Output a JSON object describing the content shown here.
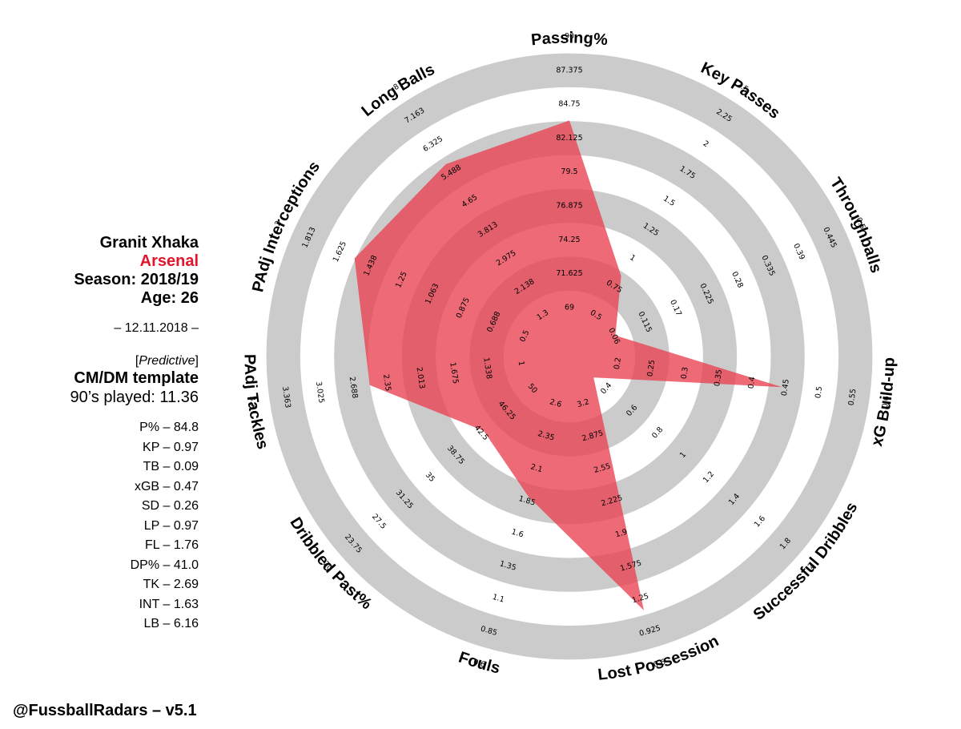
{
  "player": {
    "name": "Granit Xhaka",
    "club": "Arsenal",
    "season": "Season: 2018/19",
    "age": "Age: 26",
    "date": "– 12.11.2018 –",
    "mode": "Predictive",
    "template": "CM/DM template",
    "played": "90’s played: 11.36"
  },
  "stats": [
    "P% – 84.8",
    "KP – 0.97",
    "TB – 0.09",
    "xGB – 0.47",
    "SD – 0.26",
    "LP – 0.97",
    "FL – 1.76",
    "DP% – 41.0",
    "TK – 2.69",
    "INT – 1.63",
    "LB – 6.16"
  ],
  "credit": "@FussballRadars – v5.1",
  "colors": {
    "ring_gray": "#cbcbcb",
    "fill": "#e8404f",
    "club": "#e2152b"
  },
  "chart_data": {
    "type": "radar",
    "axes": [
      {
        "label": "Passing%",
        "ticks": [
          "69",
          "71.625",
          "74.25",
          "76.875",
          "79.5",
          "82.125",
          "84.75",
          "87.375",
          "90"
        ],
        "value": 84.8,
        "min": 69,
        "max": 90
      },
      {
        "label": "Key Passes",
        "ticks": [
          "0.5",
          "0.75",
          "1",
          "1.25",
          "1.5",
          "1.75",
          "2",
          "2.25",
          "2.5"
        ],
        "value": 0.97,
        "min": 0.5,
        "max": 2.5
      },
      {
        "label": "Throughballs",
        "ticks": [
          "0.06",
          "0.115",
          "0.17",
          "0.225",
          "0.28",
          "0.335",
          "0.39",
          "0.445",
          "0.5"
        ],
        "value": 0.09,
        "min": 0.06,
        "max": 0.5
      },
      {
        "label": "xG Build-up",
        "ticks": [
          "0.2",
          "0.25",
          "0.3",
          "0.35",
          "0.4",
          "0.45",
          "0.5",
          "0.55",
          "0.6"
        ],
        "value": 0.47,
        "min": 0.2,
        "max": 0.6
      },
      {
        "label": "Successful Dribbles",
        "ticks": [
          "0.4",
          "0.6",
          "0.8",
          "1",
          "1.2",
          "1.4",
          "1.6",
          "1.8",
          "2"
        ],
        "value": 0.26,
        "min": 0.4,
        "max": 2
      },
      {
        "label": "Lost Possession",
        "ticks": [
          "3.2",
          "2.875",
          "2.55",
          "2.225",
          "1.9",
          "1.575",
          "1.25",
          "0.925",
          "0.6"
        ],
        "value": 0.97,
        "min": 3.2,
        "max": 0.6
      },
      {
        "label": "Fouls",
        "ticks": [
          "2.6",
          "2.35",
          "2.1",
          "1.85",
          "1.6",
          "1.35",
          "1.1",
          "0.85",
          "0.6"
        ],
        "value": 1.76,
        "min": 2.6,
        "max": 0.6
      },
      {
        "label": "Dribbled Past%",
        "ticks": [
          "50",
          "46.25",
          "42.5",
          "38.75",
          "35",
          "31.25",
          "27.5",
          "23.75",
          "20"
        ],
        "value": 41.0,
        "min": 50,
        "max": 20
      },
      {
        "label": "PAdj Tackles",
        "ticks": [
          "1",
          "1.338",
          "1.675",
          "2.013",
          "2.35",
          "2.688",
          "3.025",
          "3.363",
          "3.7"
        ],
        "value": 2.69,
        "min": 1,
        "max": 3.7
      },
      {
        "label": "PAdj Interceptions",
        "ticks": [
          "0.5",
          "0.688",
          "0.875",
          "1.063",
          "1.25",
          "1.438",
          "1.625",
          "1.813",
          "2"
        ],
        "value": 1.63,
        "min": 0.5,
        "max": 2
      },
      {
        "label": "Long Balls",
        "ticks": [
          "1.3",
          "2.138",
          "2.975",
          "3.813",
          "4.65",
          "5.488",
          "6.325",
          "7.163",
          "8"
        ],
        "value": 6.16,
        "min": 1.3,
        "max": 8
      }
    ]
  }
}
